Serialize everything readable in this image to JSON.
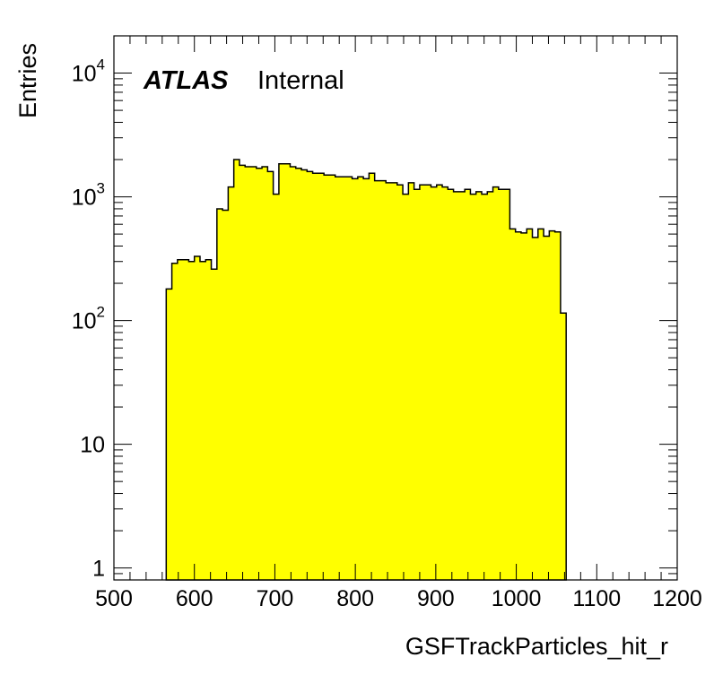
{
  "chart_data": {
    "type": "histogram",
    "xlabel": "GSFTrackParticles_hit_r",
    "ylabel": "Entries",
    "xlim": [
      500,
      1200
    ],
    "ylim": [
      0.8,
      20000
    ],
    "y_scale": "log",
    "x_ticks": [
      "500",
      "600",
      "700",
      "800",
      "900",
      "1000",
      "1100",
      "1200"
    ],
    "y_ticks": [
      {
        "value": 1,
        "base": "1",
        "exp": ""
      },
      {
        "value": 10,
        "base": "10",
        "exp": ""
      },
      {
        "value": 100,
        "base": "10",
        "exp": "2"
      },
      {
        "value": 1000,
        "base": "10",
        "exp": "3"
      },
      {
        "value": 10000,
        "base": "10",
        "exp": "4"
      }
    ],
    "bin_width": 7,
    "first_bin_edge": 565,
    "fill_color": "#ffff00",
    "line_color": "#000000",
    "values": [
      180,
      290,
      310,
      310,
      300,
      330,
      300,
      310,
      260,
      800,
      780,
      1200,
      2000,
      1800,
      1750,
      1750,
      1700,
      1750,
      1600,
      1050,
      1850,
      1850,
      1750,
      1700,
      1650,
      1600,
      1550,
      1550,
      1500,
      1500,
      1450,
      1450,
      1450,
      1400,
      1450,
      1400,
      1550,
      1350,
      1350,
      1300,
      1300,
      1250,
      1050,
      1300,
      1150,
      1250,
      1250,
      1200,
      1250,
      1200,
      1150,
      1100,
      1100,
      1150,
      1050,
      1100,
      1050,
      1100,
      1200,
      1150,
      1150,
      550,
      520,
      510,
      550,
      470,
      550,
      480,
      530,
      520,
      115
    ]
  },
  "labels": {
    "atlas": "ATLAS",
    "internal": "Internal"
  }
}
